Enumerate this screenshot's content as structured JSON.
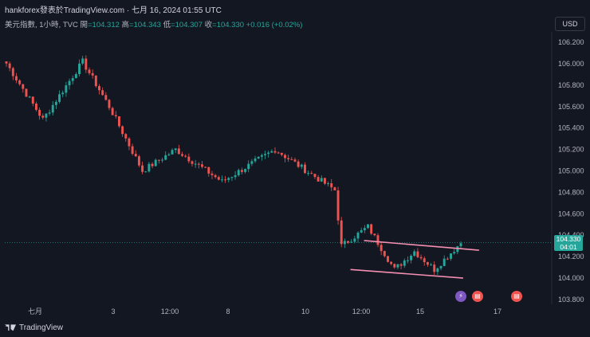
{
  "header": {
    "title": "hankforex發表於TradingView.com · 七月 16, 2024 01:55 UTC"
  },
  "legend": {
    "symbol": "美元指數, 1小時, TVC",
    "open_label": "開",
    "open": "=104.312",
    "high_label": "高",
    "high": "=104.343",
    "low_label": "低",
    "low": "=104.307",
    "close_label": "收",
    "close": "=104.330",
    "change": "+0.016 (+0.02%)"
  },
  "currency_button": "USD",
  "price_label": {
    "price": "104.330",
    "countdown": "04:01"
  },
  "branding": "TradingView",
  "events": [
    {
      "icon": "lightning-icon",
      "color": "#7e57c2"
    },
    {
      "icon": "us-flag-icon",
      "color": "#ef5350"
    },
    {
      "icon": "us-flag-icon",
      "color": "#ef5350"
    }
  ],
  "colors": {
    "up": "#26a69a",
    "down": "#ef5350",
    "trendline": "#f48fb1",
    "background": "#131722"
  },
  "chart_data": {
    "type": "candlestick",
    "y_ticks": [
      "106.200",
      "106.000",
      "105.800",
      "105.600",
      "105.400",
      "105.200",
      "105.000",
      "104.800",
      "104.600",
      "104.400",
      "104.200",
      "104.000",
      "103.800"
    ],
    "x_ticks": [
      "七月",
      "3",
      "12:00",
      "8",
      "10",
      "12:00",
      "15",
      "17"
    ],
    "ylim": [
      103.77,
      106.26
    ],
    "last_price": 104.33,
    "segments": [
      {
        "from": 106.05,
        "to": 105.48,
        "n": 12
      },
      {
        "from": 105.48,
        "to": 106.02,
        "n": 12
      },
      {
        "from": 106.02,
        "to": 105.6,
        "n": 8
      },
      {
        "from": 105.6,
        "to": 105.0,
        "n": 10
      },
      {
        "from": 105.0,
        "to": 105.2,
        "n": 10
      },
      {
        "from": 105.2,
        "to": 104.9,
        "n": 14
      },
      {
        "from": 104.9,
        "to": 105.2,
        "n": 16
      },
      {
        "from": 105.2,
        "to": 104.82,
        "n": 18
      },
      {
        "from": 104.82,
        "to": 104.3,
        "n": 2
      },
      {
        "from": 104.3,
        "to": 104.48,
        "n": 8
      },
      {
        "from": 104.48,
        "to": 104.08,
        "n": 8
      },
      {
        "from": 104.08,
        "to": 104.25,
        "n": 6
      },
      {
        "from": 104.25,
        "to": 104.08,
        "n": 6
      },
      {
        "from": 104.08,
        "to": 104.33,
        "n": 8
      }
    ],
    "trendlines": [
      {
        "x": [
          0.617,
          0.812
        ],
        "y": [
          104.35,
          104.26
        ]
      },
      {
        "x": [
          0.594,
          0.785
        ],
        "y": [
          104.08,
          104.0
        ]
      }
    ]
  }
}
